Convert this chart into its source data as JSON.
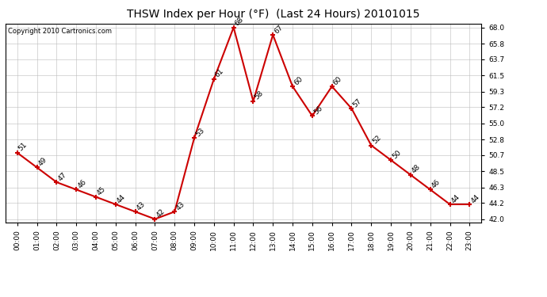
{
  "title": "THSW Index per Hour (°F)  (Last 24 Hours) 20101015",
  "copyright": "Copyright 2010 Cartronics.com",
  "hours": [
    0,
    1,
    2,
    3,
    4,
    5,
    6,
    7,
    8,
    9,
    10,
    11,
    12,
    13,
    14,
    15,
    16,
    17,
    18,
    19,
    20,
    21,
    22,
    23
  ],
  "values": [
    51,
    49,
    47,
    46,
    45,
    44,
    43,
    42,
    43,
    53,
    61,
    68,
    58,
    67,
    60,
    56,
    60,
    57,
    52,
    50,
    48,
    46,
    44,
    44
  ],
  "xlabels": [
    "00:00",
    "01:00",
    "02:00",
    "03:00",
    "04:00",
    "05:00",
    "06:00",
    "07:00",
    "08:00",
    "09:00",
    "10:00",
    "11:00",
    "12:00",
    "13:00",
    "14:00",
    "15:00",
    "16:00",
    "17:00",
    "18:00",
    "19:00",
    "20:00",
    "21:00",
    "22:00",
    "23:00"
  ],
  "yticks": [
    42.0,
    44.2,
    46.3,
    48.5,
    50.7,
    52.8,
    55.0,
    57.2,
    59.3,
    61.5,
    63.7,
    65.8,
    68.0
  ],
  "ylim": [
    41.5,
    68.5
  ],
  "line_color": "#cc0000",
  "marker_color": "#cc0000",
  "bg_color": "#ffffff",
  "grid_color": "#bbbbbb",
  "label_fontsize": 6.5,
  "title_fontsize": 10,
  "annotation_fontsize": 6.5,
  "copyright_fontsize": 6
}
